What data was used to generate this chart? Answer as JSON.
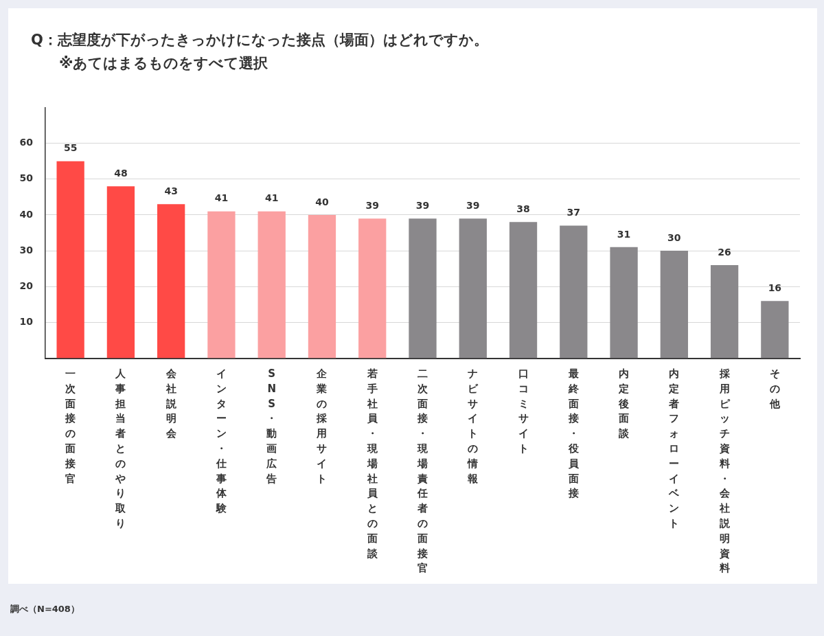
{
  "chart_data": {
    "type": "bar",
    "title": "Q：志望度が下がったきっかけになった接点（場面）はどれですか。",
    "subtitle": "※あてはまるものをすべて選択",
    "categories": [
      "一次面接の面接官",
      "人事担当者とのやり取り",
      "会社説明会",
      "インターン・仕事体験",
      "SNS・動画広告",
      "企業の採用サイト",
      "若手社員・現場社員との面談",
      "二次面接・現場責任者の面接官",
      "ナビサイトの情報",
      "口コミサイト",
      "最終面接・役員面接",
      "内定後面談",
      "内定者フォローイベント",
      "採用ピッチ資料・会社説明資料",
      "その他"
    ],
    "values": [
      55,
      48,
      43,
      41,
      41,
      40,
      39,
      39,
      39,
      38,
      37,
      31,
      30,
      26,
      16
    ],
    "colors": [
      "#ff4a46",
      "#ff4a46",
      "#ff4a46",
      "#fba0a1",
      "#fba0a1",
      "#fba0a1",
      "#fba0a1",
      "#8a888b",
      "#8a888b",
      "#8a888b",
      "#8a888b",
      "#8a888b",
      "#8a888b",
      "#8a888b",
      "#8a888b"
    ],
    "ylim": [
      0,
      70
    ],
    "yticks": [
      10,
      20,
      30,
      40,
      50,
      60
    ],
    "grid": "y",
    "data_labels": true,
    "annotations": [
      "調べ（N=408）"
    ]
  }
}
